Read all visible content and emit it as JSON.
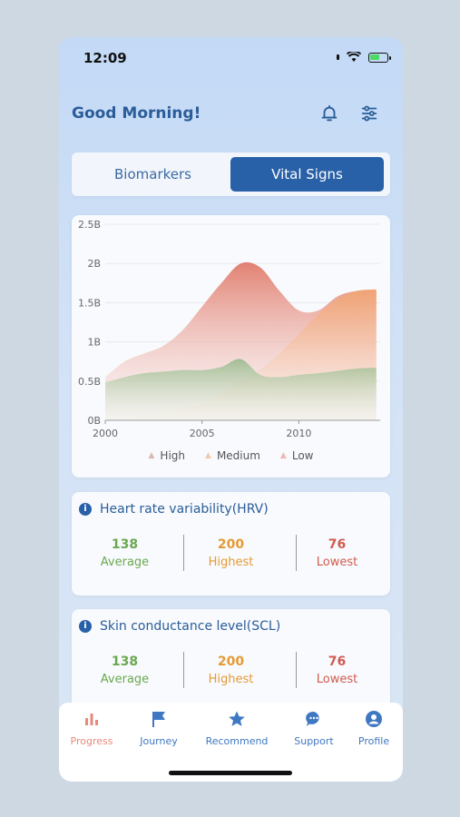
{
  "status_bar": {
    "time": "12:09"
  },
  "header": {
    "greeting": "Good Morning!"
  },
  "segment": {
    "biomarkers": "Biomarkers",
    "vital_signs": "Vital Signs",
    "selected": "Vital Signs"
  },
  "chart_data": {
    "type": "area",
    "x": [
      2000,
      2001,
      2002,
      2003,
      2004,
      2005,
      2006,
      2007,
      2008,
      2009,
      2010,
      2011,
      2012,
      2013,
      2014
    ],
    "x_ticks": [
      "2000",
      "2005",
      "2010"
    ],
    "y_ticks": [
      "0B",
      "0.5B",
      "1B",
      "1.5B",
      "2B",
      "2.5B"
    ],
    "ylim": [
      0,
      2.5
    ],
    "xlim": [
      2000,
      2014.2
    ],
    "grid": true,
    "legend_position": "bottom",
    "series": [
      {
        "name": "High",
        "color": "#e07a6a",
        "values": [
          0.55,
          0.75,
          0.85,
          0.95,
          1.15,
          1.45,
          1.75,
          2.0,
          1.95,
          1.65,
          1.4,
          1.4,
          1.58,
          1.65,
          1.65
        ]
      },
      {
        "name": "Medium",
        "color": "#f0a374",
        "values": [
          0.0,
          0.02,
          0.05,
          0.1,
          0.15,
          0.2,
          0.35,
          0.5,
          0.65,
          0.85,
          1.1,
          1.35,
          1.55,
          1.65,
          1.67
        ]
      },
      {
        "name": "Low",
        "color": "#94b889",
        "values": [
          0.48,
          0.55,
          0.6,
          0.62,
          0.64,
          0.64,
          0.68,
          0.78,
          0.58,
          0.55,
          0.58,
          0.6,
          0.63,
          0.66,
          0.67
        ]
      }
    ]
  },
  "hrv": {
    "title": "Heart rate variability(HRV)",
    "average": "138",
    "average_label": "Average",
    "highest": "200",
    "highest_label": "Highest",
    "lowest": "76",
    "lowest_label": "Lowest"
  },
  "scl": {
    "title": "Skin conductance level(SCL)",
    "average": "138",
    "average_label": "Average",
    "highest": "200",
    "highest_label": "Highest",
    "lowest": "76",
    "lowest_label": "Lowest"
  },
  "tabs": [
    {
      "label": "Progress",
      "icon": "bar-chart-icon",
      "active": true
    },
    {
      "label": "Journey",
      "icon": "flag-icon",
      "active": false
    },
    {
      "label": "Recommend",
      "icon": "star-icon",
      "active": false
    },
    {
      "label": "Support",
      "icon": "chat-icon",
      "active": false
    },
    {
      "label": "Profile",
      "icon": "user-icon",
      "active": false
    }
  ],
  "colors": {
    "accent": "#2861a8",
    "heading": "#2a5d99",
    "average": "#6aa84f",
    "highest": "#e59a35",
    "lowest": "#d25b4f",
    "active_tab": "#e88a7b"
  }
}
